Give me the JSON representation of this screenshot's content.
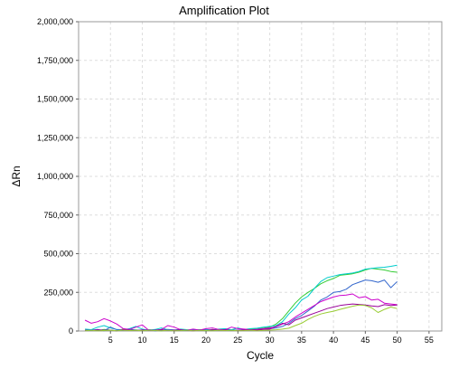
{
  "chart_data": {
    "type": "line",
    "title": "Amplification Plot",
    "xlabel": "Cycle",
    "ylabel": "ΔRn",
    "xlim": [
      0,
      57
    ],
    "ylim": [
      0,
      2000000
    ],
    "x_ticks": [
      5,
      10,
      15,
      20,
      25,
      30,
      35,
      40,
      45,
      50,
      55
    ],
    "x_tick_labels": [
      "5",
      "10",
      "15",
      "20",
      "25",
      "30",
      "35",
      "40",
      "45",
      "50",
      "55"
    ],
    "y_ticks": [
      0,
      250000,
      500000,
      750000,
      1000000,
      1250000,
      1500000,
      1750000,
      2000000
    ],
    "y_tick_labels": [
      "0",
      "250,000",
      "500,000",
      "750,000",
      "1,000,000",
      "1,250,000",
      "1,500,000",
      "1,750,000",
      "2,000,000"
    ],
    "grid": true,
    "x": [
      1,
      2,
      3,
      4,
      5,
      6,
      7,
      8,
      9,
      10,
      11,
      12,
      13,
      14,
      15,
      16,
      17,
      18,
      19,
      20,
      21,
      22,
      23,
      24,
      25,
      26,
      27,
      28,
      29,
      30,
      31,
      32,
      33,
      34,
      35,
      36,
      37,
      38,
      39,
      40,
      41,
      42,
      43,
      44,
      45,
      46,
      47,
      48,
      49,
      50
    ],
    "series": [
      {
        "color": "#33cc33",
        "values": [
          5000,
          8000,
          3000,
          10000,
          6000,
          2000,
          12000,
          4000,
          7000,
          3000,
          9000,
          5000,
          2000,
          8000,
          4000,
          6000,
          3000,
          7000,
          5000,
          2000,
          10000,
          4000,
          6000,
          8000,
          3000,
          9000,
          12000,
          15000,
          18000,
          25000,
          45000,
          80000,
          130000,
          180000,
          220000,
          250000,
          275000,
          305000,
          325000,
          340000,
          360000,
          365000,
          370000,
          380000,
          395000,
          405000,
          400000,
          395000,
          385000,
          380000
        ]
      },
      {
        "color": "#00cccc",
        "values": [
          12000,
          9000,
          25000,
          35000,
          20000,
          10000,
          8000,
          15000,
          30000,
          12000,
          5000,
          10000,
          20000,
          8000,
          6000,
          12000,
          9000,
          4000,
          8000,
          10000,
          6000,
          12000,
          15000,
          8000,
          20000,
          10000,
          15000,
          18000,
          25000,
          30000,
          35000,
          60000,
          110000,
          150000,
          200000,
          225000,
          275000,
          320000,
          345000,
          355000,
          365000,
          370000,
          375000,
          385000,
          400000,
          405000,
          410000,
          412000,
          418000,
          425000
        ]
      },
      {
        "color": "#3366cc",
        "values": [
          3000,
          5000,
          10000,
          2000,
          25000,
          8000,
          4000,
          12000,
          6000,
          3000,
          9000,
          2000,
          5000,
          10000,
          7000,
          3000,
          6000,
          4000,
          8000,
          5000,
          3000,
          7000,
          9000,
          4000,
          6000,
          8000,
          5000,
          10000,
          12000,
          15000,
          20000,
          30000,
          50000,
          80000,
          100000,
          130000,
          160000,
          200000,
          220000,
          250000,
          255000,
          270000,
          300000,
          315000,
          330000,
          325000,
          315000,
          330000,
          280000,
          320000
        ]
      },
      {
        "color": "#cc00cc",
        "values": [
          70000,
          50000,
          60000,
          80000,
          65000,
          45000,
          15000,
          10000,
          25000,
          40000,
          5000,
          3000,
          10000,
          35000,
          25000,
          8000,
          5000,
          12000,
          6000,
          15000,
          20000,
          10000,
          8000,
          25000,
          15000,
          12000,
          8000,
          10000,
          15000,
          20000,
          28000,
          45000,
          60000,
          90000,
          115000,
          140000,
          165000,
          190000,
          205000,
          220000,
          230000,
          232000,
          240000,
          215000,
          222000,
          200000,
          205000,
          180000,
          175000,
          170000
        ]
      },
      {
        "color": "#990099",
        "values": [
          5000,
          3000,
          8000,
          4000,
          6000,
          2000,
          10000,
          5000,
          3000,
          7000,
          4000,
          6000,
          9000,
          3000,
          5000,
          8000,
          4000,
          2000,
          6000,
          3000,
          9000,
          5000,
          7000,
          3000,
          4000,
          6000,
          8000,
          5000,
          10000,
          12000,
          30000,
          50000,
          40000,
          70000,
          85000,
          100000,
          115000,
          130000,
          145000,
          155000,
          165000,
          170000,
          175000,
          172000,
          168000,
          162000,
          158000,
          170000,
          165000,
          168000
        ]
      },
      {
        "color": "#99cc33",
        "values": [
          2000,
          4000,
          1000,
          3000,
          5000,
          2000,
          6000,
          3000,
          4000,
          2000,
          5000,
          3000,
          1000,
          4000,
          2000,
          3000,
          5000,
          2000,
          4000,
          3000,
          2000,
          5000,
          3000,
          4000,
          2000,
          3000,
          5000,
          2000,
          4000,
          6000,
          8000,
          12000,
          18000,
          35000,
          50000,
          75000,
          95000,
          110000,
          120000,
          128000,
          140000,
          150000,
          160000,
          168000,
          165000,
          150000,
          120000,
          140000,
          155000,
          145000
        ]
      }
    ]
  }
}
